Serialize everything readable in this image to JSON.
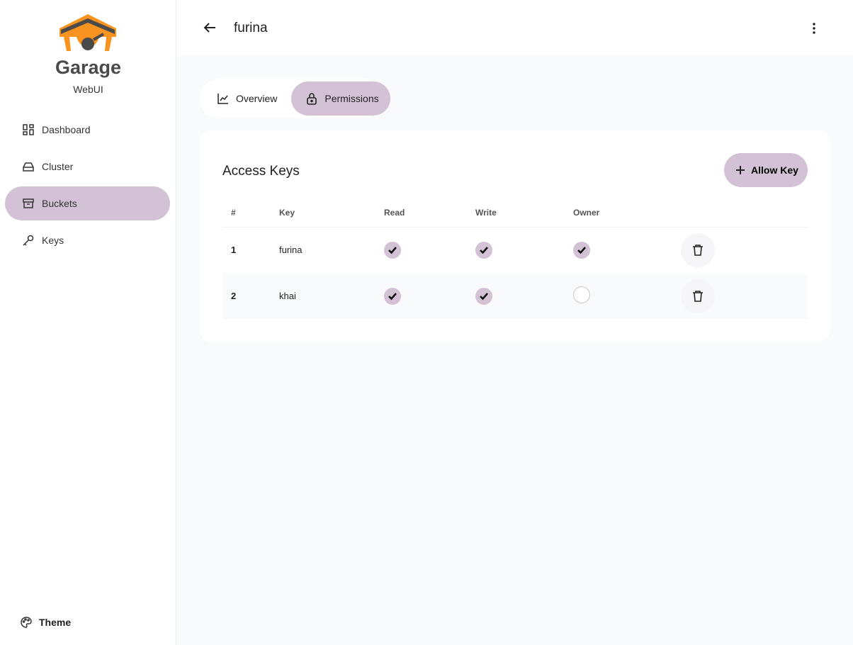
{
  "brand": {
    "name": "Garage",
    "subtitle": "WebUI"
  },
  "sidebar": {
    "items": [
      {
        "label": "Dashboard",
        "icon": "dashboard-icon"
      },
      {
        "label": "Cluster",
        "icon": "hard-drive-icon"
      },
      {
        "label": "Buckets",
        "icon": "archive-icon",
        "active": true
      },
      {
        "label": "Keys",
        "icon": "key-icon"
      }
    ],
    "theme": "Theme"
  },
  "header": {
    "title": "furina"
  },
  "tabs": [
    {
      "label": "Overview"
    },
    {
      "label": "Permissions",
      "active": true
    }
  ],
  "card": {
    "title": "Access Keys",
    "allow_label": "Allow Key",
    "columns": [
      "#",
      "Key",
      "Read",
      "Write",
      "Owner"
    ],
    "rows": [
      {
        "n": "1",
        "key": "furina",
        "read": true,
        "write": true,
        "owner": true
      },
      {
        "n": "2",
        "key": "khai",
        "read": true,
        "write": true,
        "owner": false
      }
    ]
  },
  "colors": {
    "accent": "#d3c2d6",
    "logo": "#f7931e"
  }
}
